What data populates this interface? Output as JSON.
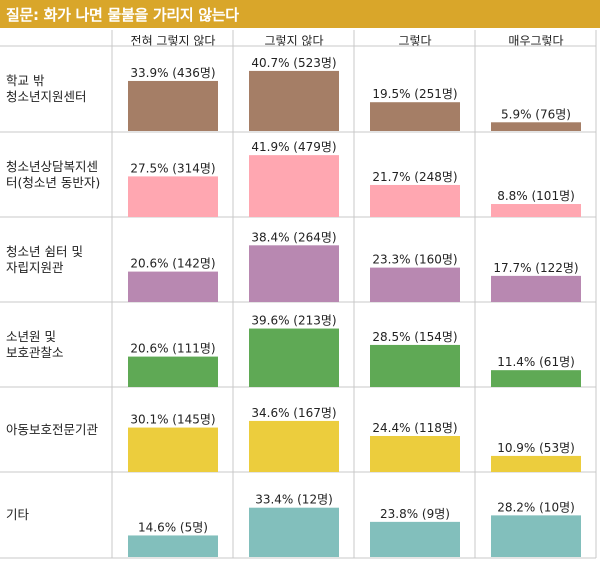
{
  "title": "질문: 화가 나면 물불을 가리지 않는다",
  "colors": {
    "title_bar": "#d9a62a",
    "grid_line": "#c8c8c8",
    "rows": [
      "#a57e66",
      "#ffa7b1",
      "#b888b1",
      "#5fa955",
      "#eccd3d",
      "#82bfbc"
    ]
  },
  "chart_data": {
    "type": "bar",
    "title": "질문: 화가 나면 물불을 가리지 않는다",
    "categories": [
      "전혀 그렇지 않다",
      "그렇지 않다",
      "그렇다",
      "매우그렇다"
    ],
    "rows": [
      {
        "name": "학교 밖 청소년지원센터",
        "label_lines": [
          "학교 밖",
          "청소년지원센터"
        ],
        "values": [
          33.9,
          40.7,
          19.5,
          5.9
        ],
        "labels": [
          "33.9% (436명)",
          "40.7% (523명)",
          "19.5% (251명)",
          "5.9% (76명)"
        ]
      },
      {
        "name": "청소년상담복지센터(청소년 동반자)",
        "label_lines": [
          "청소년상담복지센",
          "터(청소년 동반자)"
        ],
        "values": [
          27.5,
          41.9,
          21.7,
          8.8
        ],
        "labels": [
          "27.5% (314명)",
          "41.9% (479명)",
          "21.7% (248명)",
          "8.8% (101명)"
        ]
      },
      {
        "name": "청소년 쉼터 및 자립지원관",
        "label_lines": [
          "청소년 쉼터 및",
          "자립지원관"
        ],
        "values": [
          20.6,
          38.4,
          23.3,
          17.7
        ],
        "labels": [
          "20.6% (142명)",
          "38.4% (264명)",
          "23.3% (160명)",
          "17.7% (122명)"
        ]
      },
      {
        "name": "소년원 및 보호관찰소",
        "label_lines": [
          "소년원 및",
          "보호관찰소"
        ],
        "values": [
          20.6,
          39.6,
          28.5,
          11.4
        ],
        "labels": [
          "20.6% (111명)",
          "39.6% (213명)",
          "28.5% (154명)",
          "11.4% (61명)"
        ]
      },
      {
        "name": "아동보호전문기관",
        "label_lines": [
          "아동보호전문기관"
        ],
        "values": [
          30.1,
          34.6,
          24.4,
          10.9
        ],
        "labels": [
          "30.1% (145명)",
          "34.6% (167명)",
          "24.4% (118명)",
          "10.9% (53명)"
        ]
      },
      {
        "name": "기타",
        "label_lines": [
          "기타"
        ],
        "values": [
          14.6,
          33.4,
          23.8,
          28.2
        ],
        "labels": [
          "14.6% (5명)",
          "33.4% (12명)",
          "23.8% (9명)",
          "28.2% (10명)"
        ]
      }
    ]
  }
}
